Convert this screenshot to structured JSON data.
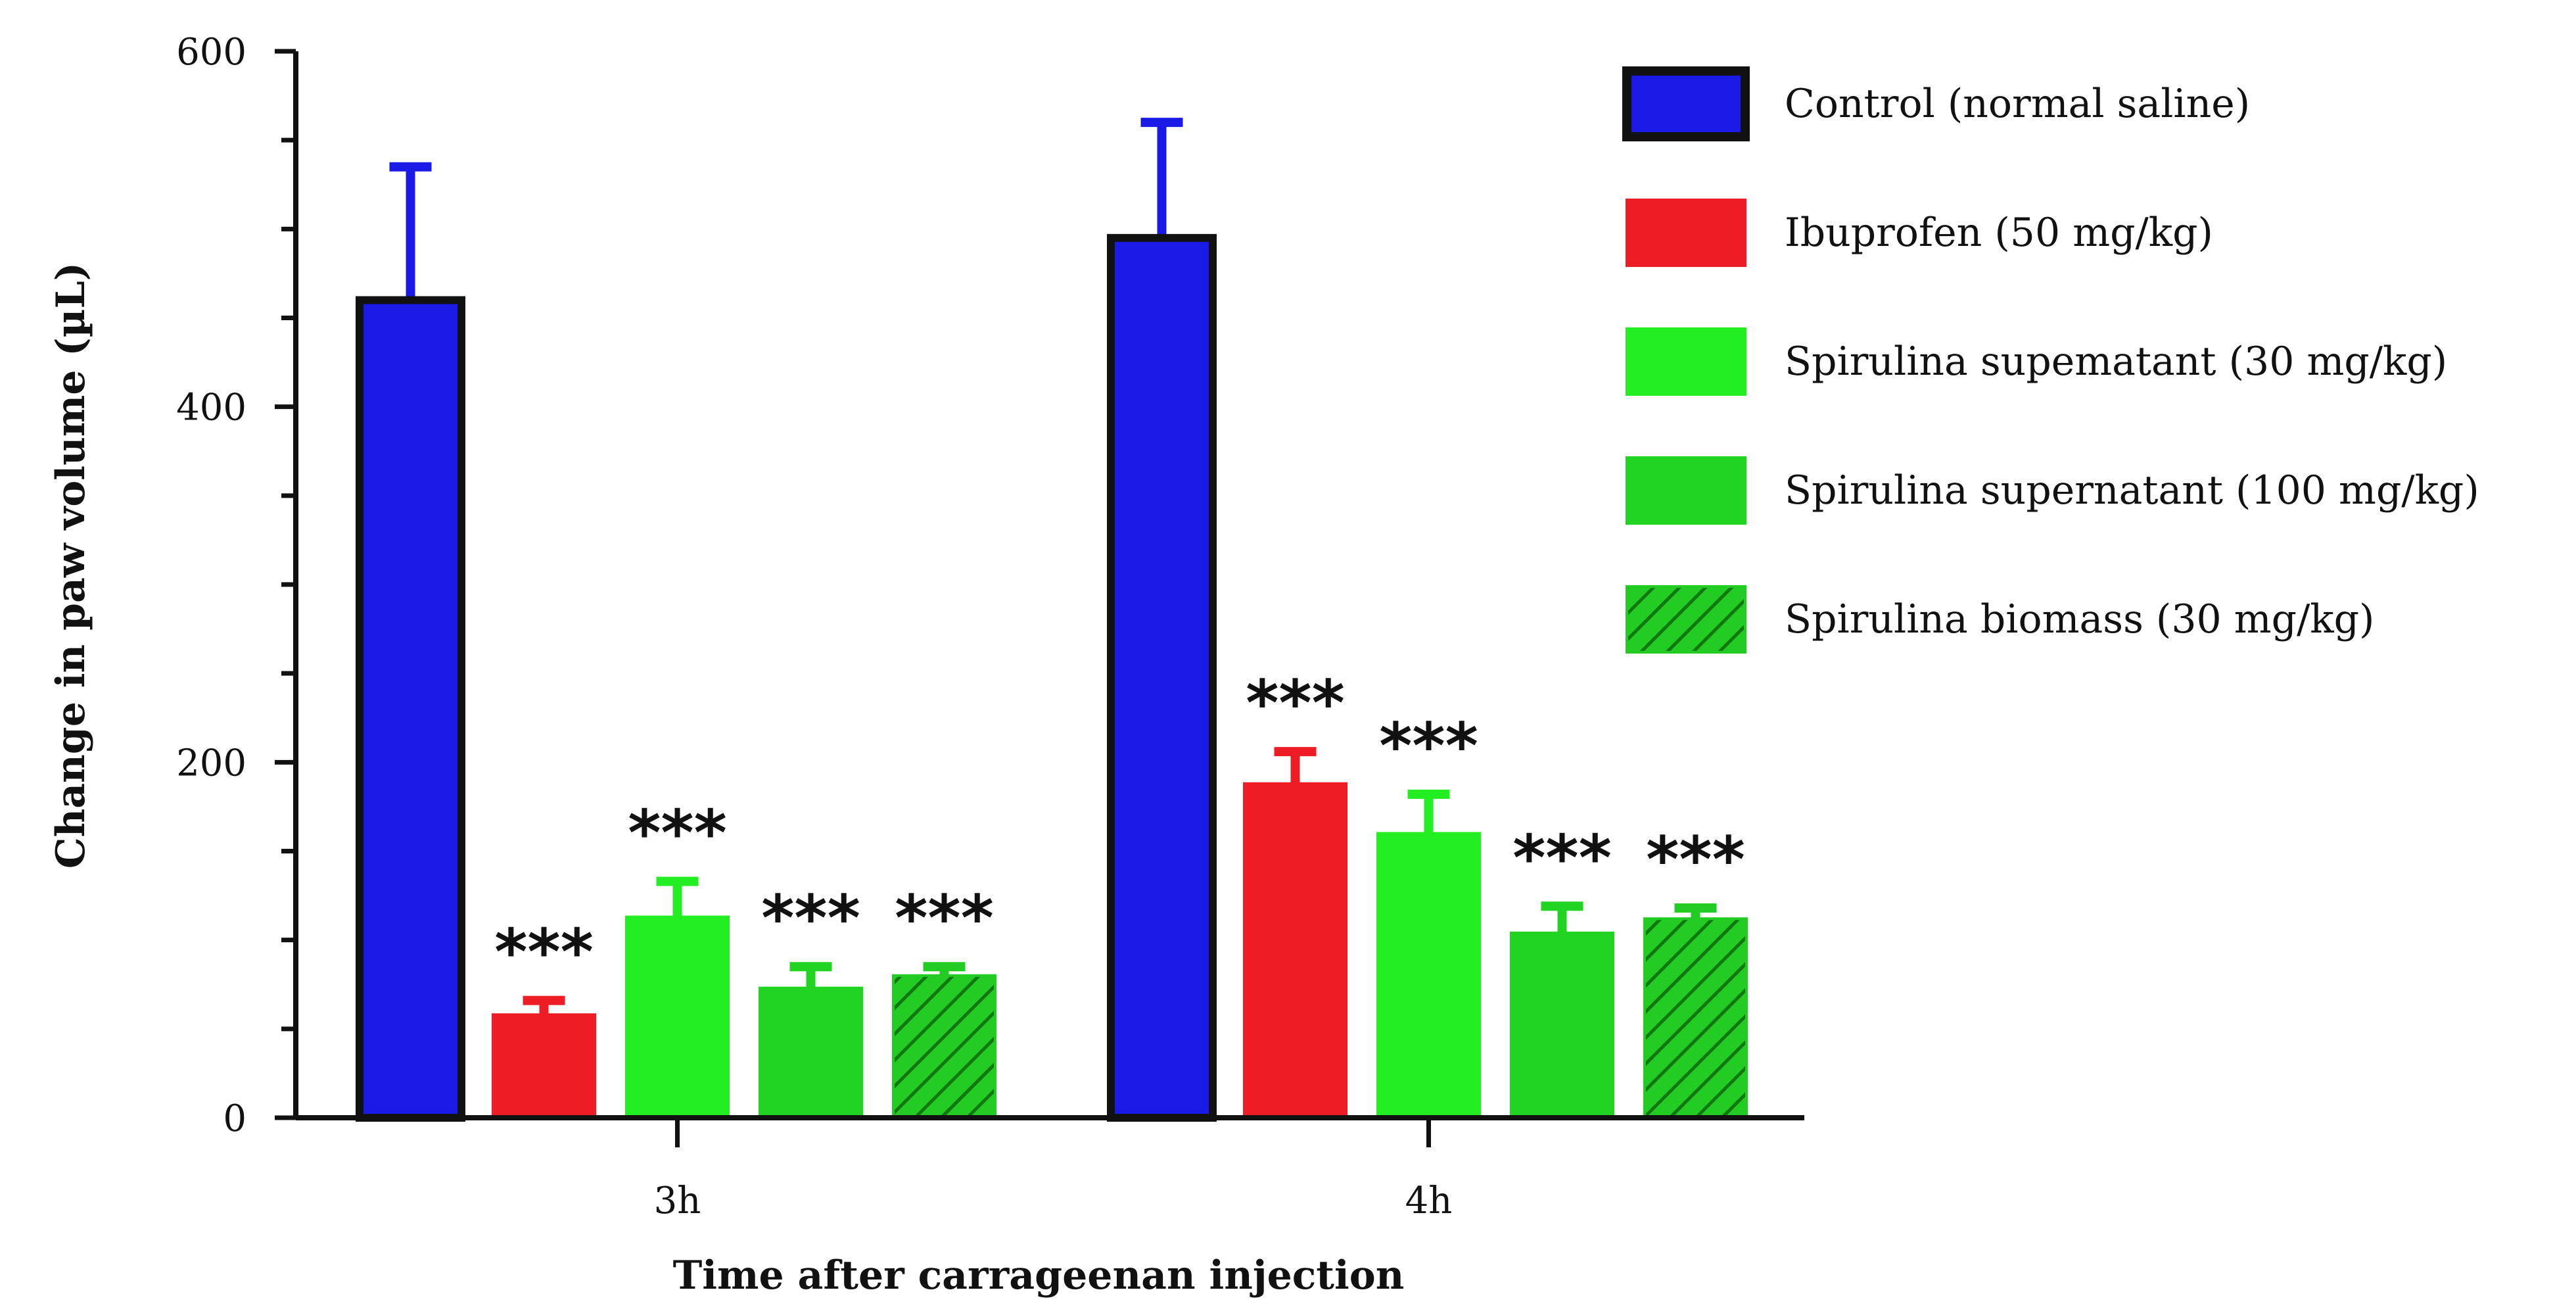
{
  "chart_data": {
    "type": "bar",
    "title": "",
    "xlabel": "Time after carrageenan injection",
    "ylabel": "Change in paw volume (µL)",
    "ylim": [
      0,
      600
    ],
    "yticks": [
      "0",
      "200",
      "400",
      "600"
    ],
    "categories": [
      "3h",
      "4h"
    ],
    "series": [
      {
        "name": "Control (normal saline)",
        "color": "#1a1ae6",
        "hatch": false,
        "values": [
          460,
          495
        ],
        "errors": [
          75,
          65
        ],
        "significance": [
          "",
          ""
        ]
      },
      {
        "name": "Ibuprofen (50 mg/kg)",
        "color": "#ee1c25",
        "hatch": false,
        "values": [
          58,
          188
        ],
        "errors": [
          8,
          18
        ],
        "significance": [
          "***",
          "***"
        ]
      },
      {
        "name": "Spirulina supematant (30 mg/kg)",
        "color": "#22ee22",
        "hatch": false,
        "values": [
          113,
          160
        ],
        "errors": [
          20,
          22
        ],
        "significance": [
          "***",
          "***"
        ]
      },
      {
        "name": "Spirulina supernatant (100 mg/kg)",
        "color": "#22d422",
        "hatch": false,
        "values": [
          73,
          104
        ],
        "errors": [
          12,
          15
        ],
        "significance": [
          "***",
          "***"
        ]
      },
      {
        "name": "Spirulina biomass (30 mg/kg)",
        "color": "#22cc22",
        "hatch": true,
        "values": [
          80,
          112
        ],
        "errors": [
          5,
          6
        ],
        "significance": [
          "***",
          "***"
        ]
      }
    ],
    "legend_position": "top-right"
  }
}
